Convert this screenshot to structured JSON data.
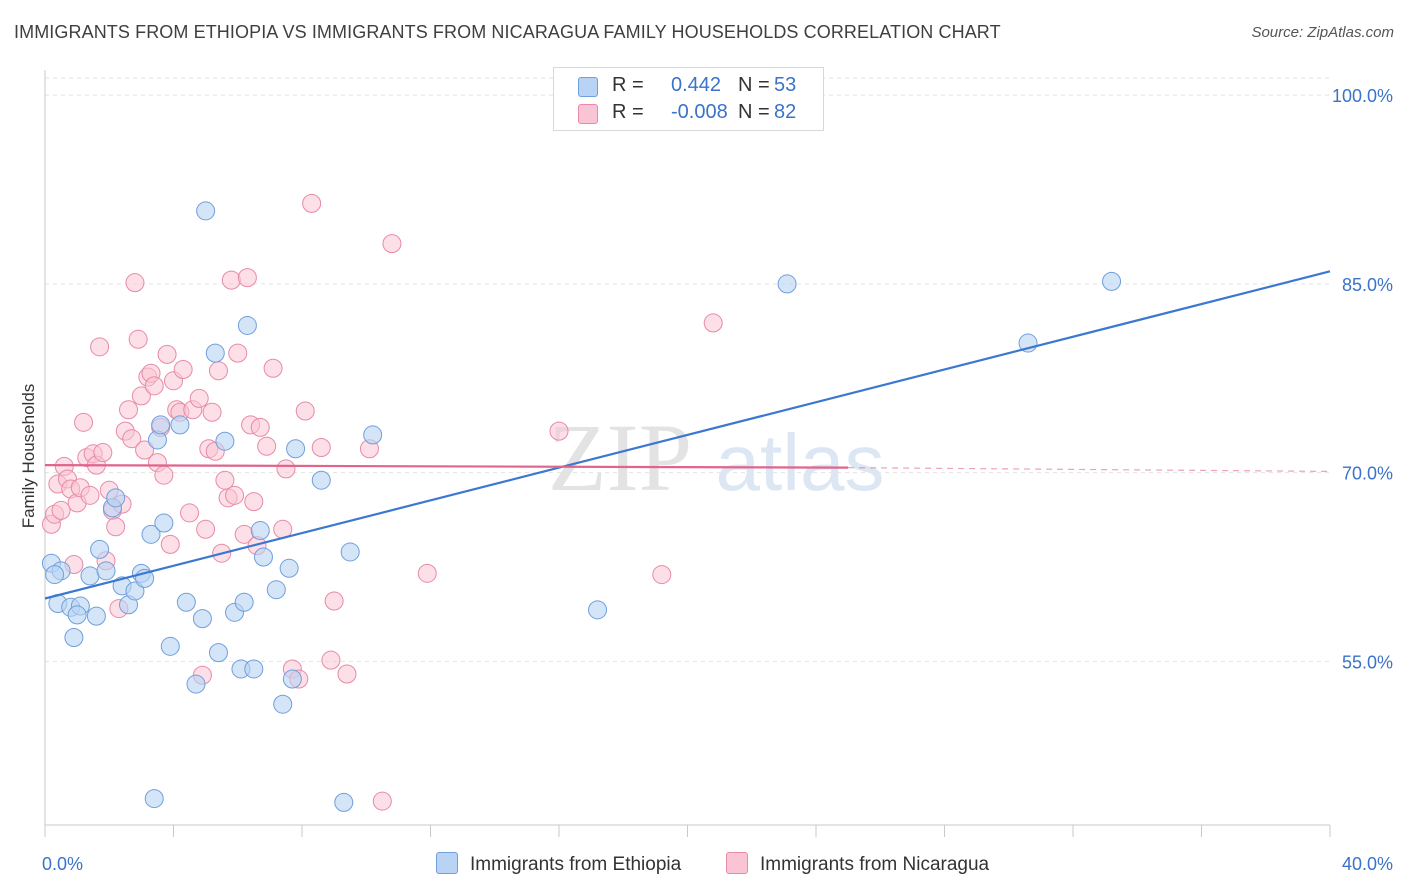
{
  "title": "IMMIGRANTS FROM ETHIOPIA VS IMMIGRANTS FROM NICARAGUA FAMILY HOUSEHOLDS CORRELATION CHART",
  "source": "Source: ZipAtlas.com",
  "watermark": {
    "zip": "ZIP",
    "atlas": "atlas"
  },
  "legend": {
    "r_label": "R =",
    "n_label": "N =",
    "rows": [
      {
        "r": "0.442",
        "n": "53"
      },
      {
        "r": "-0.008",
        "n": "82"
      }
    ]
  },
  "colors": {
    "ethiopia_fill": "#b9d3f4",
    "ethiopia_stroke": "#6f9fdc",
    "ethiopia_line": "#3b78d0",
    "nicaragua_fill": "#f9c4d4",
    "nicaragua_stroke": "#e88aa8",
    "nicaragua_line": "#e0648c",
    "tick_label": "#3a73c9"
  },
  "chart_data": {
    "type": "scatter",
    "xlabel": "",
    "ylabel": "Family Households",
    "xlim": [
      0,
      40
    ],
    "ylim": [
      42,
      102
    ],
    "x_tick_labels": [
      "0.0%",
      "40.0%"
    ],
    "y_ticks": [
      55,
      70,
      85,
      100
    ],
    "y_tick_labels": [
      "55.0%",
      "70.0%",
      "85.0%",
      "100.0%"
    ],
    "grid": "horizontal dashed",
    "legend_position": "top-center and bottom",
    "series": [
      {
        "name": "Immigrants from Ethiopia",
        "trend": {
          "x": [
            0,
            40
          ],
          "y": [
            60.0,
            86.0
          ]
        },
        "points": [
          [
            0.2,
            62.8
          ],
          [
            0.5,
            62.2
          ],
          [
            0.4,
            59.6
          ],
          [
            0.8,
            59.3
          ],
          [
            0.9,
            56.9
          ],
          [
            1.1,
            59.4
          ],
          [
            1.0,
            58.7
          ],
          [
            1.4,
            61.8
          ],
          [
            1.6,
            58.6
          ],
          [
            1.7,
            63.9
          ],
          [
            1.9,
            62.2
          ],
          [
            2.1,
            67.2
          ],
          [
            2.2,
            68.0
          ],
          [
            2.4,
            61.0
          ],
          [
            2.6,
            59.5
          ],
          [
            2.8,
            60.6
          ],
          [
            3.0,
            62.0
          ],
          [
            3.1,
            61.6
          ],
          [
            3.3,
            65.1
          ],
          [
            3.5,
            72.6
          ],
          [
            3.7,
            66.0
          ],
          [
            3.9,
            56.2
          ],
          [
            4.2,
            73.8
          ],
          [
            4.4,
            59.7
          ],
          [
            4.7,
            53.2
          ],
          [
            4.9,
            58.4
          ],
          [
            5.0,
            90.8
          ],
          [
            5.3,
            79.5
          ],
          [
            5.4,
            55.7
          ],
          [
            5.6,
            72.5
          ],
          [
            5.9,
            58.9
          ],
          [
            6.1,
            54.4
          ],
          [
            6.2,
            59.7
          ],
          [
            6.3,
            81.7
          ],
          [
            6.5,
            54.4
          ],
          [
            6.7,
            65.4
          ],
          [
            6.8,
            63.3
          ],
          [
            7.2,
            60.7
          ],
          [
            7.4,
            51.6
          ],
          [
            7.6,
            62.4
          ],
          [
            7.7,
            53.6
          ],
          [
            7.8,
            71.9
          ],
          [
            8.6,
            69.4
          ],
          [
            9.3,
            43.8
          ],
          [
            9.5,
            63.7
          ],
          [
            10.2,
            73.0
          ],
          [
            3.6,
            73.8
          ],
          [
            3.4,
            44.1
          ],
          [
            17.2,
            59.1
          ],
          [
            23.1,
            85.0
          ],
          [
            30.6,
            80.3
          ],
          [
            33.2,
            85.2
          ],
          [
            0.3,
            61.9
          ]
        ]
      },
      {
        "name": "Immigrants from Nicaragua",
        "trend": {
          "x": [
            0,
            25
          ],
          "y": [
            70.6,
            70.4
          ]
        },
        "trend_dashed": {
          "x": [
            25,
            40
          ],
          "y": [
            70.4,
            70.1
          ]
        },
        "points": [
          [
            0.2,
            65.9
          ],
          [
            0.3,
            66.7
          ],
          [
            0.4,
            69.1
          ],
          [
            0.5,
            67.0
          ],
          [
            0.6,
            70.5
          ],
          [
            0.7,
            69.5
          ],
          [
            0.8,
            68.7
          ],
          [
            0.9,
            62.7
          ],
          [
            1.0,
            67.6
          ],
          [
            1.1,
            68.8
          ],
          [
            1.2,
            74.0
          ],
          [
            1.3,
            71.2
          ],
          [
            1.4,
            68.2
          ],
          [
            1.5,
            71.5
          ],
          [
            1.6,
            70.6
          ],
          [
            1.7,
            80.0
          ],
          [
            1.8,
            71.6
          ],
          [
            1.9,
            63.0
          ],
          [
            2.0,
            68.6
          ],
          [
            2.1,
            67.0
          ],
          [
            2.2,
            65.7
          ],
          [
            2.3,
            59.2
          ],
          [
            2.4,
            67.5
          ],
          [
            2.5,
            73.3
          ],
          [
            2.6,
            75.0
          ],
          [
            2.7,
            72.7
          ],
          [
            2.8,
            85.1
          ],
          [
            2.9,
            80.6
          ],
          [
            3.0,
            76.1
          ],
          [
            3.1,
            71.8
          ],
          [
            3.2,
            77.6
          ],
          [
            3.3,
            77.9
          ],
          [
            3.4,
            76.9
          ],
          [
            3.5,
            70.8
          ],
          [
            3.6,
            73.6
          ],
          [
            3.7,
            69.8
          ],
          [
            3.8,
            79.4
          ],
          [
            3.9,
            64.3
          ],
          [
            4.0,
            77.3
          ],
          [
            4.1,
            75.0
          ],
          [
            4.2,
            74.8
          ],
          [
            4.3,
            78.2
          ],
          [
            4.5,
            66.8
          ],
          [
            4.6,
            75.0
          ],
          [
            4.8,
            75.9
          ],
          [
            4.9,
            53.9
          ],
          [
            5.0,
            65.5
          ],
          [
            5.1,
            71.9
          ],
          [
            5.2,
            74.8
          ],
          [
            5.3,
            71.7
          ],
          [
            5.4,
            78.1
          ],
          [
            5.5,
            63.6
          ],
          [
            5.6,
            69.4
          ],
          [
            5.7,
            68.0
          ],
          [
            5.8,
            85.3
          ],
          [
            5.9,
            68.2
          ],
          [
            6.0,
            79.5
          ],
          [
            6.2,
            65.1
          ],
          [
            6.3,
            85.5
          ],
          [
            6.4,
            73.8
          ],
          [
            6.5,
            67.7
          ],
          [
            6.6,
            64.2
          ],
          [
            6.7,
            73.6
          ],
          [
            6.9,
            72.1
          ],
          [
            7.1,
            78.3
          ],
          [
            7.4,
            65.5
          ],
          [
            7.5,
            70.3
          ],
          [
            7.7,
            54.4
          ],
          [
            7.9,
            53.6
          ],
          [
            8.1,
            74.9
          ],
          [
            8.3,
            91.4
          ],
          [
            8.6,
            72.0
          ],
          [
            8.9,
            55.1
          ],
          [
            9.0,
            59.8
          ],
          [
            9.4,
            54.0
          ],
          [
            10.1,
            71.9
          ],
          [
            10.5,
            43.9
          ],
          [
            10.8,
            88.2
          ],
          [
            11.9,
            62.0
          ],
          [
            16.0,
            73.3
          ],
          [
            19.2,
            61.9
          ],
          [
            20.8,
            81.9
          ]
        ]
      }
    ]
  }
}
